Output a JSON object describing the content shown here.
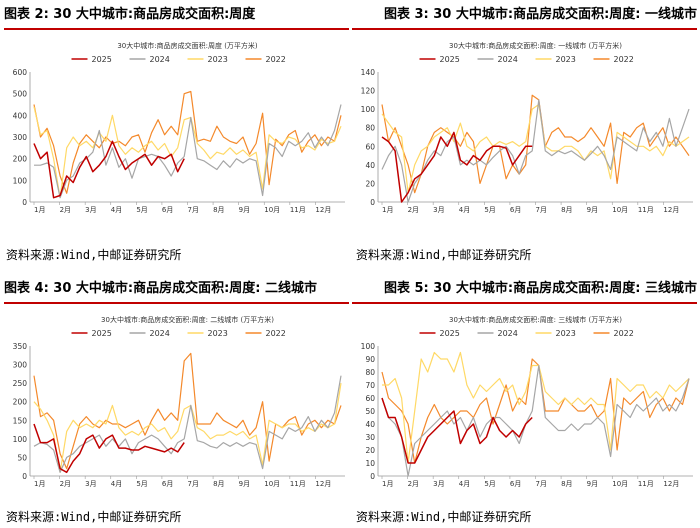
{
  "colors": {
    "s2025": "#c00000",
    "s2024": "#a6a6a6",
    "s2023": "#ffd966",
    "s2022": "#f4892b",
    "title_rule": "#c00000",
    "axis": "#999999"
  },
  "charts": [
    {
      "panel_title": "图表 2: 30 大中城市:商品房成交面积:周度",
      "chart_title": "30大中城市:商品房成交面积:周度 (万平方米)",
      "source": "资料来源:Wind,中邮证券研究所",
      "chart_data": {
        "type": "line",
        "ylim": [
          0,
          600
        ],
        "yticks": [
          "0",
          "100",
          "200",
          "300",
          "400",
          "500",
          "600"
        ],
        "xticks": [
          "1月",
          "2月",
          "3月",
          "4月",
          "5月",
          "6月",
          "7月",
          "8月",
          "9月",
          "10月",
          "11月",
          "12月"
        ],
        "series": [
          {
            "name": "2025",
            "values": [
              270,
              200,
              230,
              20,
              30,
              120,
              90,
              160,
              210,
              140,
              170,
              210,
              280,
              210,
              150,
              180,
              200,
              220,
              170,
              210,
              200,
              220,
              140,
              200
            ]
          },
          {
            "name": "2024",
            "values": [
              170,
              170,
              180,
              160,
              20,
              100,
              120,
              180,
              200,
              230,
              330,
              170,
              250,
              160,
              200,
              110,
              200,
              210,
              220,
              210,
              170,
              120,
              180,
              210,
              390,
              200,
              190,
              170,
              150,
              190,
              160,
              200,
              180,
              200,
              190,
              30,
              270,
              250,
              210,
              280,
              260,
              280,
              320,
              250,
              300,
              260,
              330,
              450
            ]
          },
          {
            "name": "2023",
            "values": [
              440,
              310,
              330,
              200,
              20,
              250,
              300,
              260,
              280,
              250,
              320,
              280,
              400,
              260,
              220,
              250,
              230,
              260,
              280,
              240,
              270,
              210,
              250,
              380,
              390,
              270,
              240,
              200,
              230,
              220,
              250,
              220,
              240,
              210,
              230,
              60,
              310,
              280,
              270,
              300,
              290,
              250,
              260,
              240,
              290,
              270,
              280,
              350
            ]
          },
          {
            "name": "2022",
            "values": [
              450,
              300,
              340,
              260,
              120,
              40,
              180,
              270,
              310,
              280,
              250,
              300,
              270,
              280,
              260,
              300,
              310,
              230,
              320,
              380,
              310,
              350,
              310,
              500,
              510,
              280,
              290,
              280,
              350,
              300,
              280,
              270,
              300,
              220,
              270,
              410,
              80,
              290,
              260,
              310,
              330,
              230,
              280,
              310,
              260,
              300,
              280,
              400
            ]
          }
        ]
      }
    },
    {
      "panel_title": "图表 3: 30 大中城市:商品房成交面积:周度: 一线城市",
      "chart_title": "30大中城市:商品房成交面积:周度: 一线城市 (万平方米)",
      "source": "资料来源:Wind,中邮证券研究所",
      "chart_data": {
        "type": "line",
        "ylim": [
          0,
          140
        ],
        "yticks": [
          "0",
          "20",
          "40",
          "60",
          "80",
          "100",
          "120",
          "140"
        ],
        "xticks": [
          "1月",
          "2月",
          "3月",
          "4月",
          "5月",
          "6月",
          "7月",
          "8月",
          "9月",
          "10月",
          "11月",
          "12月"
        ],
        "series": [
          {
            "name": "2025",
            "values": [
              70,
              65,
              55,
              0,
              10,
              25,
              30,
              40,
              50,
              70,
              60,
              75,
              45,
              40,
              50,
              45,
              55,
              60,
              60,
              58,
              40,
              50,
              60,
              60
            ]
          },
          {
            "name": "2024",
            "values": [
              35,
              50,
              60,
              40,
              0,
              20,
              30,
              45,
              55,
              50,
              65,
              70,
              40,
              45,
              40,
              45,
              40,
              48,
              55,
              60,
              50,
              30,
              50,
              55,
              110,
              55,
              50,
              55,
              52,
              55,
              50,
              45,
              52,
              60,
              50,
              35,
              70,
              65,
              60,
              55,
              80,
              65,
              75,
              60,
              90,
              60,
              80,
              100
            ]
          },
          {
            "name": "2023",
            "values": [
              95,
              85,
              75,
              70,
              10,
              40,
              55,
              60,
              70,
              75,
              80,
              65,
              85,
              60,
              55,
              65,
              70,
              60,
              65,
              62,
              65,
              60,
              65,
              100,
              105,
              60,
              55,
              55,
              60,
              60,
              55,
              45,
              55,
              50,
              55,
              25,
              75,
              70,
              65,
              60,
              60,
              55,
              60,
              50,
              65,
              60,
              65,
              70
            ]
          },
          {
            "name": "2022",
            "values": [
              105,
              65,
              80,
              60,
              40,
              10,
              30,
              60,
              75,
              80,
              75,
              70,
              60,
              75,
              65,
              20,
              40,
              60,
              60,
              25,
              40,
              30,
              40,
              115,
              110,
              60,
              75,
              80,
              70,
              70,
              65,
              70,
              80,
              70,
              60,
              85,
              20,
              75,
              70,
              80,
              85,
              60,
              70,
              80,
              60,
              70,
              60,
              50
            ]
          }
        ]
      }
    },
    {
      "panel_title": "图表 4: 30 大中城市:商品房成交面积:周度: 二线城市",
      "chart_title": "30大中城市:商品房成交面积:周度: 二线城市 (万平方米)",
      "source": "资料来源:Wind,中邮证券研究所",
      "chart_data": {
        "type": "line",
        "ylim": [
          0,
          350
        ],
        "yticks": [
          "0",
          "50",
          "100",
          "150",
          "200",
          "250",
          "300",
          "350"
        ],
        "xticks": [
          "1月",
          "2月",
          "3月",
          "4月",
          "5月",
          "6月",
          "7月",
          "8月",
          "9月",
          "10月",
          "11月",
          "12月"
        ],
        "series": [
          {
            "name": "2025",
            "values": [
              140,
              90,
              90,
              100,
              20,
              10,
              40,
              60,
              100,
              110,
              75,
              100,
              110,
              75,
              75,
              70,
              70,
              80,
              75,
              70,
              65,
              75,
              65,
              90
            ]
          },
          {
            "name": "2024",
            "values": [
              80,
              90,
              85,
              70,
              10,
              50,
              60,
              80,
              90,
              100,
              110,
              80,
              100,
              80,
              100,
              60,
              90,
              100,
              110,
              100,
              80,
              60,
              90,
              100,
              190,
              95,
              90,
              80,
              75,
              90,
              80,
              90,
              80,
              90,
              85,
              20,
              120,
              110,
              100,
              130,
              120,
              130,
              160,
              120,
              150,
              130,
              170,
              270
            ]
          },
          {
            "name": "2023",
            "values": [
              200,
              180,
              150,
              110,
              10,
              120,
              150,
              130,
              140,
              130,
              150,
              140,
              190,
              130,
              110,
              120,
              110,
              130,
              140,
              120,
              130,
              100,
              120,
              180,
              190,
              130,
              120,
              100,
              110,
              110,
              120,
              110,
              120,
              100,
              110,
              30,
              150,
              140,
              130,
              140,
              140,
              120,
              130,
              120,
              140,
              130,
              140,
              250
            ]
          },
          {
            "name": "2022",
            "values": [
              270,
              160,
              170,
              150,
              60,
              20,
              80,
              140,
              160,
              140,
              130,
              150,
              140,
              140,
              130,
              140,
              150,
              110,
              150,
              180,
              150,
              170,
              150,
              310,
              330,
              140,
              140,
              140,
              170,
              150,
              140,
              130,
              150,
              110,
              130,
              200,
              40,
              140,
              130,
              150,
              160,
              110,
              140,
              150,
              130,
              150,
              140,
              190
            ]
          }
        ]
      }
    },
    {
      "panel_title": "图表 5: 30 大中城市:商品房成交面积:周度: 三线城市",
      "chart_title": "30大中城市:商品房成交面积:周度: 三线城市 (万平方米)",
      "source": "资料来源:Wind,中邮证券研究所",
      "chart_data": {
        "type": "line",
        "ylim": [
          0,
          100
        ],
        "yticks": [
          "0",
          "10",
          "20",
          "30",
          "40",
          "50",
          "60",
          "70",
          "80",
          "90",
          "100"
        ],
        "xticks": [
          "1月",
          "2月",
          "3月",
          "4月",
          "5月",
          "6月",
          "7月",
          "8月",
          "9月",
          "10月",
          "11月",
          "12月"
        ],
        "series": [
          {
            "name": "2025",
            "values": [
              60,
              45,
              45,
              30,
              10,
              10,
              20,
              30,
              35,
              40,
              45,
              50,
              25,
              35,
              40,
              25,
              30,
              45,
              35,
              30,
              35,
              30,
              40,
              45
            ]
          },
          {
            "name": "2024",
            "values": [
              60,
              45,
              40,
              30,
              0,
              25,
              30,
              35,
              40,
              45,
              50,
              40,
              45,
              35,
              45,
              30,
              40,
              45,
              45,
              40,
              35,
              25,
              40,
              50,
              85,
              45,
              40,
              35,
              35,
              40,
              35,
              40,
              40,
              45,
              40,
              15,
              55,
              50,
              45,
              55,
              50,
              55,
              60,
              50,
              55,
              50,
              60,
              75
            ]
          },
          {
            "name": "2023",
            "values": [
              70,
              70,
              75,
              60,
              10,
              50,
              90,
              80,
              95,
              90,
              90,
              80,
              95,
              70,
              60,
              70,
              65,
              70,
              75,
              65,
              70,
              55,
              65,
              85,
              85,
              65,
              60,
              55,
              60,
              55,
              60,
              55,
              60,
              55,
              55,
              20,
              75,
              70,
              65,
              70,
              70,
              60,
              65,
              60,
              70,
              65,
              70,
              75
            ]
          },
          {
            "name": "2022",
            "values": [
              80,
              60,
              55,
              50,
              40,
              10,
              30,
              45,
              55,
              45,
              40,
              45,
              50,
              50,
              45,
              55,
              60,
              40,
              55,
              70,
              50,
              60,
              55,
              90,
              85,
              50,
              50,
              50,
              60,
              55,
              50,
              50,
              55,
              45,
              50,
              75,
              20,
              60,
              55,
              60,
              65,
              45,
              55,
              60,
              50,
              60,
              55,
              75
            ]
          }
        ]
      }
    }
  ]
}
